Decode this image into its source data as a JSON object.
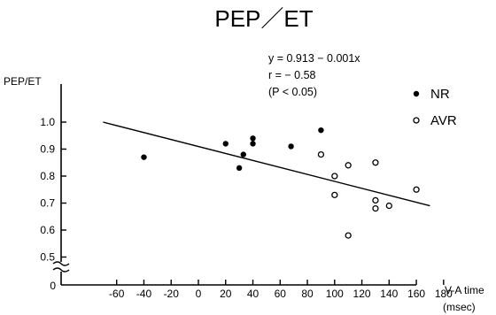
{
  "chart_data": {
    "type": "scatter",
    "title": "PEP／ET",
    "ylabel": "PEP/ET",
    "xlabel": "V-A time",
    "xunit": "(msec)",
    "xlim": [
      -70,
      180
    ],
    "ylim": [
      0.5,
      1.0
    ],
    "y_axis_break": true,
    "y_break_lower_tick": "0",
    "x_ticks": [
      -60,
      -40,
      -20,
      0,
      20,
      40,
      60,
      80,
      100,
      120,
      140,
      160,
      180
    ],
    "x_tick_labels": [
      "-60",
      "-40",
      "-20",
      "0",
      "20",
      "40",
      "60",
      "80",
      "100",
      "120",
      "140",
      "160",
      "180"
    ],
    "y_ticks": [
      0.5,
      0.6,
      0.7,
      0.8,
      0.9,
      1.0
    ],
    "y_tick_labels": [
      "0.5",
      "0.6",
      "0.7",
      "0.8",
      "0.9",
      "1.0"
    ],
    "annotations": [
      "y = 0.913 − 0.001x",
      "r = − 0.58",
      "(P < 0.05)"
    ],
    "regression": {
      "intercept": 0.913,
      "slope": -0.001,
      "x_range": [
        -70,
        170
      ],
      "y_range": [
        1.0,
        0.69
      ]
    },
    "legend_position": "top-right",
    "series": [
      {
        "name": "NR",
        "marker": "filled-circle",
        "points": [
          {
            "x": -40,
            "y": 0.87
          },
          {
            "x": 20,
            "y": 0.92
          },
          {
            "x": 30,
            "y": 0.83
          },
          {
            "x": 33,
            "y": 0.88
          },
          {
            "x": 40,
            "y": 0.94
          },
          {
            "x": 40,
            "y": 0.92
          },
          {
            "x": 68,
            "y": 0.91
          },
          {
            "x": 90,
            "y": 0.97
          }
        ]
      },
      {
        "name": "AVR",
        "marker": "open-circle",
        "points": [
          {
            "x": 90,
            "y": 0.88
          },
          {
            "x": 100,
            "y": 0.8
          },
          {
            "x": 100,
            "y": 0.73
          },
          {
            "x": 110,
            "y": 0.84
          },
          {
            "x": 110,
            "y": 0.58
          },
          {
            "x": 130,
            "y": 0.85
          },
          {
            "x": 130,
            "y": 0.71
          },
          {
            "x": 130,
            "y": 0.68
          },
          {
            "x": 140,
            "y": 0.69
          },
          {
            "x": 160,
            "y": 0.75
          }
        ]
      }
    ]
  }
}
